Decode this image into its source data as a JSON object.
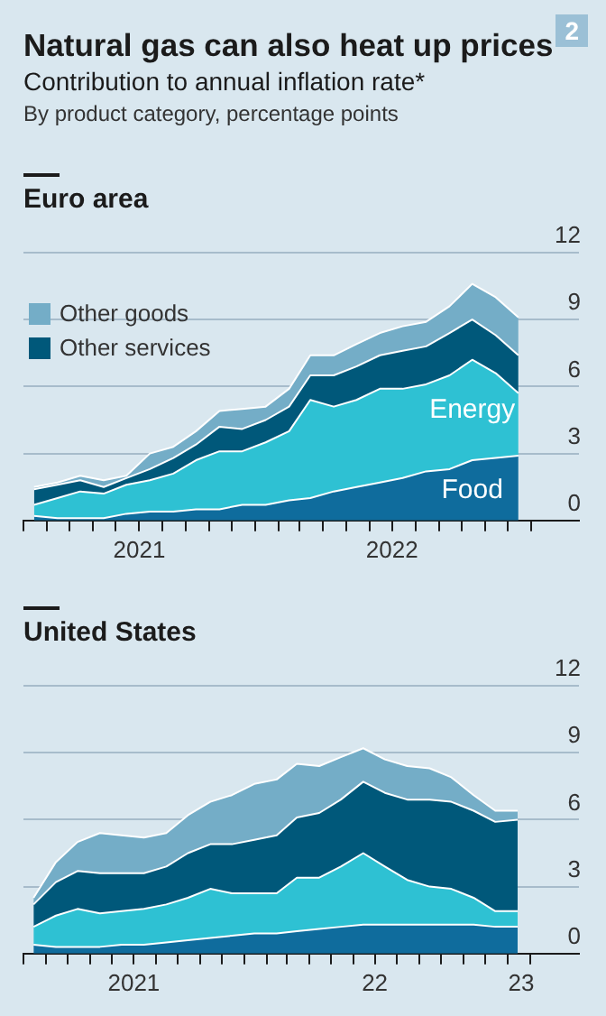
{
  "chart_data": [
    {
      "type": "other",
      "title": "Natural gas can also heat up prices",
      "subtitle": "Contribution to annual inflation rate*\nBy product category, percentage points",
      "annotations": [
        "2"
      ]
    },
    {
      "type": "area",
      "title": "Euro area",
      "stacked": true,
      "grid": "y",
      "legend": "top left",
      "x": [
        "2021-03-15",
        "2021-04-15",
        "2021-05-15",
        "2021-06-15",
        "2021-07-15",
        "2021-08-15",
        "2021-09-15",
        "2021-10-15",
        "2021-11-15",
        "2021-12-15",
        "2022-01-15",
        "2022-02-15",
        "2022-03-15",
        "2022-04-15",
        "2022-05-15",
        "2022-06-15",
        "2022-07-15",
        "2022-08-15",
        "2022-09-15",
        "2022-10-15",
        "2022-11-15",
        "2022-12-15"
      ],
      "xlim": [
        "2021-03-01",
        "2023-03-05"
      ],
      "xticks": [
        {
          "value": "2021-03-01",
          "label": null
        },
        {
          "value": "2021-04-01",
          "label": null
        },
        {
          "value": "2021-05-01",
          "label": null
        },
        {
          "value": "2021-06-01",
          "label": null
        },
        {
          "value": "2021-07-01",
          "label": null
        },
        {
          "value": "2021-08-01",
          "label": null
        },
        {
          "value": "2021-09-01",
          "label": null
        },
        {
          "value": "2021-10-01",
          "label": null
        },
        {
          "value": "2021-11-01",
          "label": null
        },
        {
          "value": "2021-12-01",
          "label": null
        },
        {
          "value": "2022-01-01",
          "label": null
        },
        {
          "value": "2022-02-01",
          "label": null
        },
        {
          "value": "2022-03-01",
          "label": null
        },
        {
          "value": "2022-04-01",
          "label": null
        },
        {
          "value": "2022-05-01",
          "label": null
        },
        {
          "value": "2022-06-01",
          "label": null
        },
        {
          "value": "2022-07-01",
          "label": null
        },
        {
          "value": "2022-08-01",
          "label": null
        },
        {
          "value": "2022-09-01",
          "label": null
        },
        {
          "value": "2022-10-01",
          "label": null
        },
        {
          "value": "2022-11-01",
          "label": null
        },
        {
          "value": "2022-12-01",
          "label": null
        },
        {
          "value": "2023-01-01",
          "label": null
        },
        {
          "value": "2021-08-01",
          "label": "2021"
        },
        {
          "value": "2022-07-01",
          "label": "2022"
        }
      ],
      "ylim": [
        0,
        12
      ],
      "yticks": [
        0,
        3,
        6,
        9,
        12
      ],
      "series": [
        {
          "name": "Food",
          "color": "#0f6c9d",
          "values": [
            0.2,
            0.1,
            0.1,
            0.1,
            0.3,
            0.4,
            0.4,
            0.5,
            0.5,
            0.7,
            0.7,
            0.9,
            1.0,
            1.3,
            1.5,
            1.7,
            1.9,
            2.2,
            2.3,
            2.7,
            2.8,
            2.9
          ]
        },
        {
          "name": "Energy",
          "color": "#2ec1d3",
          "values": [
            0.5,
            0.9,
            1.2,
            1.1,
            1.3,
            1.4,
            1.7,
            2.2,
            2.6,
            2.4,
            2.8,
            3.1,
            4.4,
            3.8,
            3.9,
            4.2,
            4.0,
            3.9,
            4.2,
            4.5,
            3.8,
            2.8
          ]
        },
        {
          "name": "Other services",
          "color": "#00587a",
          "values": [
            0.7,
            0.6,
            0.5,
            0.3,
            0.3,
            0.5,
            0.7,
            0.7,
            1.1,
            1.0,
            1.0,
            1.1,
            1.1,
            1.4,
            1.5,
            1.5,
            1.7,
            1.7,
            1.9,
            1.8,
            1.7,
            1.7
          ]
        },
        {
          "name": "Other goods",
          "color": "#74adc7",
          "values": [
            0.1,
            0.1,
            0.2,
            0.3,
            0.1,
            0.7,
            0.5,
            0.6,
            0.7,
            0.9,
            0.6,
            0.8,
            0.9,
            0.9,
            1.0,
            1.0,
            1.1,
            1.1,
            1.2,
            1.6,
            1.7,
            1.7
          ]
        }
      ]
    },
    {
      "type": "area",
      "title": "United States",
      "stacked": true,
      "grid": "y",
      "x": [
        "2021-03-15",
        "2021-04-15",
        "2021-05-15",
        "2021-06-15",
        "2021-07-15",
        "2021-08-15",
        "2021-09-15",
        "2021-10-15",
        "2021-11-15",
        "2021-12-15",
        "2022-01-15",
        "2022-02-15",
        "2022-03-15",
        "2022-04-15",
        "2022-05-15",
        "2022-06-15",
        "2022-07-15",
        "2022-08-15",
        "2022-09-15",
        "2022-10-15",
        "2022-11-15",
        "2022-12-15",
        "2023-01-15"
      ],
      "xlim": [
        "2021-03-01",
        "2023-04-10"
      ],
      "xticks": [
        {
          "value": "2021-03-01",
          "label": null
        },
        {
          "value": "2021-04-01",
          "label": null
        },
        {
          "value": "2021-05-01",
          "label": null
        },
        {
          "value": "2021-06-01",
          "label": null
        },
        {
          "value": "2021-07-01",
          "label": null
        },
        {
          "value": "2021-08-01",
          "label": null
        },
        {
          "value": "2021-09-01",
          "label": null
        },
        {
          "value": "2021-10-01",
          "label": null
        },
        {
          "value": "2021-11-01",
          "label": null
        },
        {
          "value": "2021-12-01",
          "label": null
        },
        {
          "value": "2022-01-01",
          "label": null
        },
        {
          "value": "2022-02-01",
          "label": null
        },
        {
          "value": "2022-03-01",
          "label": null
        },
        {
          "value": "2022-04-01",
          "label": null
        },
        {
          "value": "2022-05-01",
          "label": null
        },
        {
          "value": "2022-06-01",
          "label": null
        },
        {
          "value": "2022-07-01",
          "label": null
        },
        {
          "value": "2022-08-01",
          "label": null
        },
        {
          "value": "2022-09-01",
          "label": null
        },
        {
          "value": "2022-10-01",
          "label": null
        },
        {
          "value": "2022-11-01",
          "label": null
        },
        {
          "value": "2022-12-01",
          "label": null
        },
        {
          "value": "2023-01-01",
          "label": null
        },
        {
          "value": "2023-02-01",
          "label": null
        },
        {
          "value": "2021-08-01",
          "label": "2021"
        },
        {
          "value": "2022-07-01",
          "label": "22"
        },
        {
          "value": "2023-01-20",
          "label": "23"
        }
      ],
      "ylim": [
        0,
        12
      ],
      "yticks": [
        0,
        3,
        6,
        9,
        12
      ],
      "series": [
        {
          "color": "#0f6c9d",
          "values": [
            0.4,
            0.3,
            0.3,
            0.3,
            0.4,
            0.4,
            0.5,
            0.6,
            0.7,
            0.8,
            0.9,
            0.9,
            1.0,
            1.1,
            1.2,
            1.3,
            1.3,
            1.3,
            1.3,
            1.3,
            1.3,
            1.2,
            1.2
          ]
        },
        {
          "color": "#2ec1d3",
          "values": [
            0.8,
            1.4,
            1.7,
            1.5,
            1.5,
            1.6,
            1.7,
            1.9,
            2.2,
            1.9,
            1.8,
            1.8,
            2.4,
            2.3,
            2.7,
            3.2,
            2.6,
            2.0,
            1.7,
            1.6,
            1.2,
            0.7,
            0.7
          ]
        },
        {
          "color": "#00587a",
          "values": [
            1.0,
            1.5,
            1.7,
            1.8,
            1.7,
            1.6,
            1.7,
            2.0,
            2.0,
            2.2,
            2.4,
            2.6,
            2.7,
            2.9,
            3.0,
            3.2,
            3.3,
            3.6,
            3.9,
            3.9,
            3.9,
            4.0,
            4.1
          ]
        },
        {
          "color": "#74adc7",
          "values": [
            0.3,
            0.9,
            1.3,
            1.8,
            1.7,
            1.6,
            1.5,
            1.7,
            1.9,
            2.2,
            2.5,
            2.5,
            2.4,
            2.1,
            1.9,
            1.5,
            1.5,
            1.5,
            1.4,
            1.1,
            0.7,
            0.5,
            0.4
          ]
        }
      ]
    }
  ]
}
